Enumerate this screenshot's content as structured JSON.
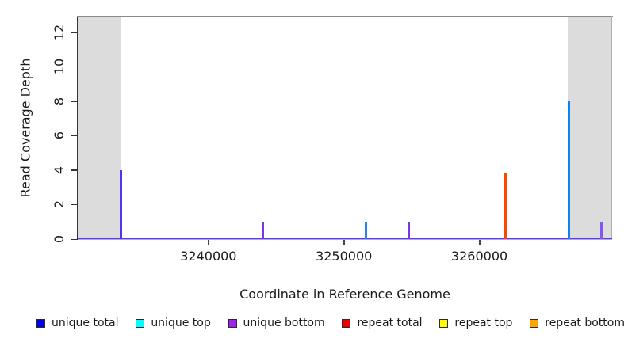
{
  "chart_data": {
    "type": "bar",
    "title": "",
    "xlabel": "Coordinate in Reference Genome",
    "ylabel": "Read Coverage Depth",
    "xlim": [
      3230350,
      3269800
    ],
    "ylim": [
      0,
      12.9
    ],
    "xticks": [
      3240000,
      3250000,
      3260000
    ],
    "yticks": [
      0,
      2,
      4,
      6,
      8,
      10,
      12
    ],
    "grid": false,
    "shaded_regions": [
      {
        "x0": 3230350,
        "x1": 3233550,
        "color": "#DCDCDC"
      },
      {
        "x0": 3266500,
        "x1": 3269750,
        "color": "#DCDCDC"
      }
    ],
    "spikes": [
      {
        "x": 3233550,
        "depth": 4,
        "color": "#5433EE"
      },
      {
        "x": 3244000,
        "depth": 1,
        "color": "#7B33EE"
      },
      {
        "x": 3251600,
        "depth": 1,
        "color": "#1E85F5"
      },
      {
        "x": 3254800,
        "depth": 1,
        "color": "#7B33EE"
      },
      {
        "x": 3261900,
        "depth": 3.8,
        "color": "#FF4500"
      },
      {
        "x": 3266600,
        "depth": 8,
        "color": "#0C82F0"
      },
      {
        "x": 3269000,
        "depth": 1,
        "color": "#8657F0"
      }
    ],
    "baseline_colors": {
      "main": "#5B3BEE",
      "under": "#B1A3F9"
    },
    "legend": {
      "position": "bottom",
      "entries": [
        {
          "label": "unique total",
          "color": "#0000EE"
        },
        {
          "label": "unique top",
          "color": "#00FFFF"
        },
        {
          "label": "unique bottom",
          "color": "#A020F0"
        },
        {
          "label": "repeat total",
          "color": "#EE0000"
        },
        {
          "label": "repeat top",
          "color": "#FFFF00"
        },
        {
          "label": "repeat bottom",
          "color": "#FFA500"
        }
      ]
    }
  }
}
